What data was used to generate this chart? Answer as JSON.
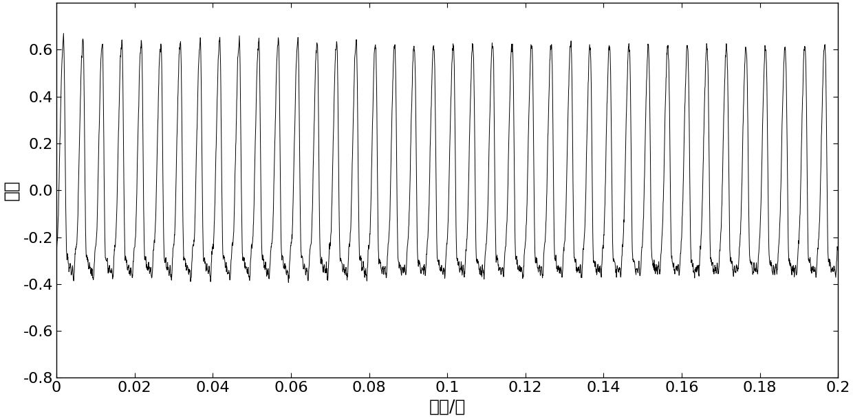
{
  "title": "",
  "xlabel": "时间/秒",
  "ylabel": "幅値",
  "xlim": [
    0,
    0.2
  ],
  "ylim": [
    -0.8,
    0.8
  ],
  "xticks": [
    0,
    0.02,
    0.04,
    0.06,
    0.08,
    0.1,
    0.12,
    0.14,
    0.16,
    0.18,
    0.2
  ],
  "xtick_labels": [
    "0",
    "0.02",
    "0.04",
    "0.06",
    "0.08",
    "0.1",
    "0.12",
    "0.14",
    "0.16",
    "0.18",
    "0.2"
  ],
  "yticks": [
    -0.8,
    -0.6,
    -0.4,
    -0.2,
    0,
    0.2,
    0.4,
    0.6
  ],
  "sample_rate": 16000,
  "duration": 0.2,
  "f0": 200,
  "background_color": "#ffffff",
  "line_color": "#000000",
  "line_width": 0.7,
  "xlabel_fontsize": 18,
  "ylabel_fontsize": 18,
  "tick_fontsize": 16
}
